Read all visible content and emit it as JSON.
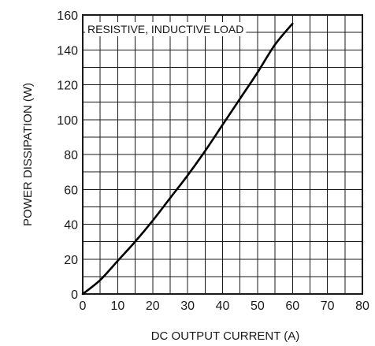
{
  "chart_data": {
    "type": "line",
    "xlabel": "DC OUTPUT CURRENT (A)",
    "ylabel": "POWER DISSIPATION (W)",
    "xlim": [
      0,
      80
    ],
    "ylim": [
      0,
      160
    ],
    "x_ticks": [
      0,
      10,
      20,
      30,
      40,
      50,
      60,
      70,
      80
    ],
    "y_ticks": [
      0,
      20,
      40,
      60,
      80,
      100,
      120,
      140,
      160
    ],
    "x_minor_step": 5,
    "y_minor_step": 10,
    "grid": true,
    "annotation": "RESISTIVE, INDUCTIVE LOAD",
    "series": [
      {
        "color": "#000000",
        "x": [
          0,
          5,
          10,
          15,
          20,
          25,
          30,
          35,
          40,
          45,
          50,
          55,
          60
        ],
        "y": [
          0,
          8,
          19,
          30,
          42,
          55,
          68,
          82,
          97,
          112,
          127,
          143,
          155
        ]
      }
    ]
  }
}
